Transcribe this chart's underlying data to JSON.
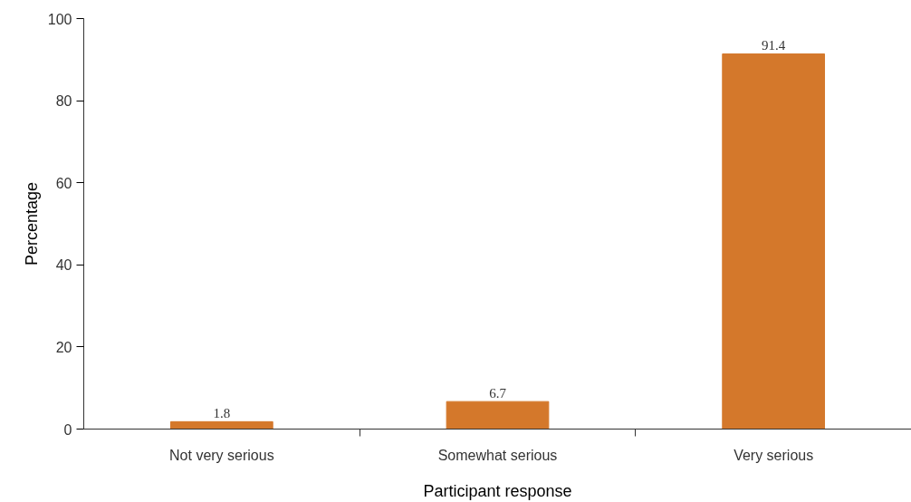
{
  "chart_data": {
    "type": "bar",
    "xlabel": "Participant response",
    "ylabel": "Percentage",
    "categories": [
      "Not very serious",
      "Somewhat serious",
      "Very serious"
    ],
    "values": [
      1.8,
      6.7,
      91.4
    ],
    "color": "#d4782b",
    "ylim": [
      0,
      100
    ],
    "yticks": [
      0,
      20,
      40,
      60,
      80,
      100
    ],
    "data_labels": true
  }
}
